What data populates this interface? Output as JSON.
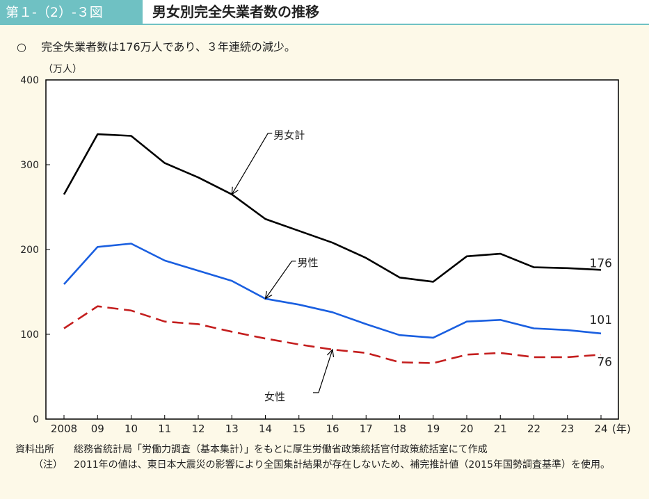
{
  "header": {
    "figure_no": "第１-（2）-３図",
    "title": "男女別完全失業者数の推移"
  },
  "summary": {
    "mark": "○",
    "text": "完全失業者数は176万人であり、３年連続の減少。"
  },
  "chart_data": {
    "type": "line",
    "yunit": "（万人）",
    "xunit": "(年)",
    "ylim": [
      0,
      400
    ],
    "yticks": [
      "0",
      "100",
      "200",
      "300",
      "400"
    ],
    "categories": [
      "2008",
      "09",
      "10",
      "11",
      "12",
      "13",
      "14",
      "15",
      "16",
      "17",
      "18",
      "19",
      "20",
      "21",
      "22",
      "23",
      "24"
    ],
    "series": [
      {
        "name": "男女計",
        "color": "#000000",
        "dash": false,
        "values": [
          265,
          336,
          334,
          302,
          285,
          265,
          236,
          222,
          208,
          190,
          167,
          162,
          192,
          195,
          179,
          178,
          176
        ],
        "end_label": "176"
      },
      {
        "name": "男性",
        "color": "#1a5fe0",
        "dash": false,
        "values": [
          159,
          203,
          207,
          187,
          175,
          163,
          142,
          135,
          126,
          112,
          99,
          96,
          115,
          117,
          107,
          105,
          101
        ],
        "end_label": "101"
      },
      {
        "name": "女性",
        "color": "#c41e1e",
        "dash": true,
        "values": [
          107,
          133,
          128,
          115,
          112,
          103,
          95,
          88,
          82,
          78,
          67,
          66,
          76,
          78,
          73,
          73,
          76
        ],
        "end_label": "76"
      }
    ],
    "annotations": [
      {
        "text": "男女計",
        "series": 0,
        "index": 5
      },
      {
        "text": "男性",
        "series": 1,
        "index": 6
      },
      {
        "text": "女性",
        "series": 2,
        "index": 8
      }
    ],
    "grid": false,
    "legend": "none"
  },
  "footnotes": {
    "source_label": "資料出所",
    "source_text": "総務省統計局「労働力調査（基本集計）」をもとに厚生労働省政策統括官付政策統括室にて作成",
    "note_label": "（注）",
    "note_text": "2011年の値は、東日本大震災の影響により全国集計結果が存在しないため、補完推計値（2015年国勢調査基準）を使用。"
  },
  "colors": {
    "background": "#fdf9e8",
    "header_tag": "#6fc1c3",
    "plot_background": "#ffffff"
  }
}
